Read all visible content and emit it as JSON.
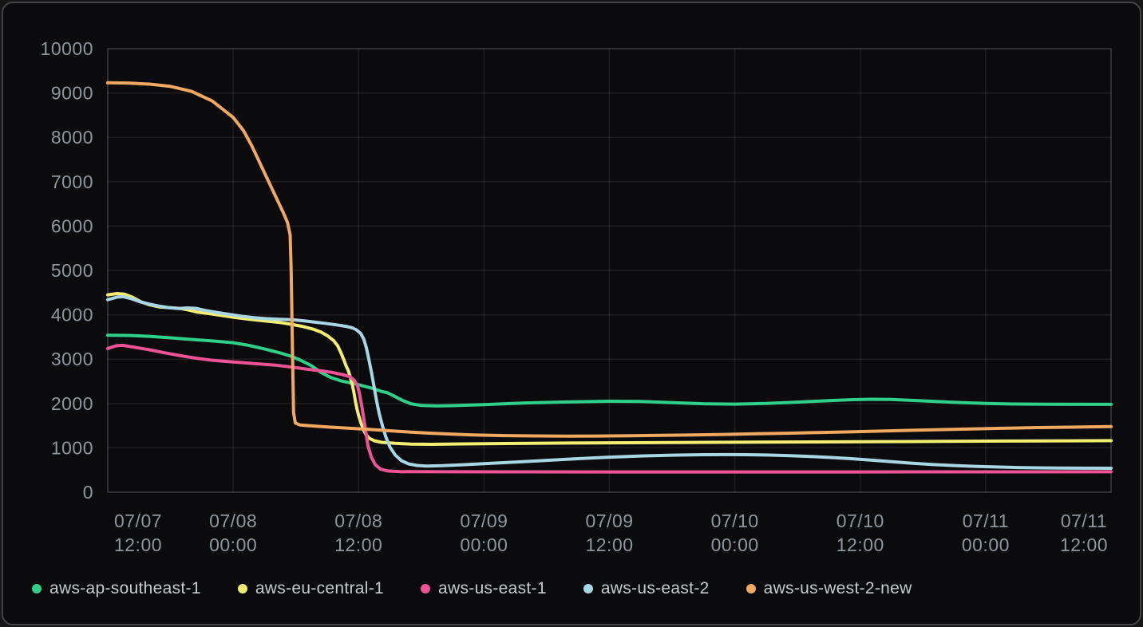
{
  "panel": {
    "background": "#0b0b0d",
    "border_color": "#434345"
  },
  "colors": {
    "grid": "rgba(255,255,255,0.08)",
    "plot_border": "rgba(255,255,255,0.14)",
    "axis_text": "#8f969e",
    "legend_text": "#c4c9ce"
  },
  "chart_data": {
    "type": "line",
    "title": "",
    "xlabel": "",
    "ylabel": "",
    "grid": true,
    "legend_position": "bottom",
    "y_axis": {
      "min": 0,
      "max": 10000,
      "tick_labels": [
        "0",
        "1000",
        "2000",
        "3000",
        "4000",
        "5000",
        "6000",
        "7000",
        "8000",
        "9000",
        "10000"
      ]
    },
    "x_axis": {
      "unit": "hours_from_start",
      "range": [
        0,
        96
      ],
      "ticks": [
        {
          "date": "07/07",
          "time": "12:00"
        },
        {
          "date": "07/08",
          "time": "00:00"
        },
        {
          "date": "07/08",
          "time": "12:00"
        },
        {
          "date": "07/09",
          "time": "00:00"
        },
        {
          "date": "07/09",
          "time": "12:00"
        },
        {
          "date": "07/10",
          "time": "00:00"
        },
        {
          "date": "07/10",
          "time": "12:00"
        },
        {
          "date": "07/11",
          "time": "00:00"
        },
        {
          "date": "07/11",
          "time": "12:00"
        }
      ]
    },
    "series": [
      {
        "name": "aws-ap-southeast-1",
        "color": "#2fd089",
        "points": [
          [
            0,
            3540
          ],
          [
            2,
            3535
          ],
          [
            4,
            3515
          ],
          [
            6,
            3480
          ],
          [
            8,
            3445
          ],
          [
            10,
            3410
          ],
          [
            12,
            3370
          ],
          [
            13.5,
            3310
          ],
          [
            15,
            3230
          ],
          [
            16.5,
            3140
          ],
          [
            17.6,
            3060
          ],
          [
            18.5,
            2970
          ],
          [
            19.5,
            2850
          ],
          [
            20.4,
            2700
          ],
          [
            21.3,
            2590
          ],
          [
            22.3,
            2510
          ],
          [
            23.7,
            2440
          ],
          [
            24.7,
            2380
          ],
          [
            25.5,
            2330
          ],
          [
            26.2,
            2270
          ],
          [
            26.7,
            2248
          ],
          [
            27.3,
            2180
          ],
          [
            28.2,
            2070
          ],
          [
            29,
            1995
          ],
          [
            30,
            1955
          ],
          [
            31.5,
            1945
          ],
          [
            33,
            1952
          ],
          [
            36,
            1975
          ],
          [
            40,
            2012
          ],
          [
            44,
            2035
          ],
          [
            48,
            2050
          ],
          [
            51,
            2045
          ],
          [
            54,
            2020
          ],
          [
            57,
            1995
          ],
          [
            60,
            1985
          ],
          [
            63,
            2000
          ],
          [
            66,
            2030
          ],
          [
            69,
            2065
          ],
          [
            71,
            2085
          ],
          [
            73,
            2095
          ],
          [
            75,
            2090
          ],
          [
            78,
            2060
          ],
          [
            81,
            2025
          ],
          [
            84,
            2000
          ],
          [
            87,
            1988
          ],
          [
            90,
            1982
          ],
          [
            96,
            1980
          ]
        ]
      },
      {
        "name": "aws-eu-central-1",
        "color": "#f2ee72",
        "points": [
          [
            0,
            4450
          ],
          [
            0.9,
            4478
          ],
          [
            1.6,
            4465
          ],
          [
            2.4,
            4390
          ],
          [
            3.2,
            4290
          ],
          [
            4,
            4225
          ],
          [
            5,
            4175
          ],
          [
            6,
            4160
          ],
          [
            7,
            4140
          ],
          [
            7.8,
            4105
          ],
          [
            8.6,
            4060
          ],
          [
            9.6,
            4030
          ],
          [
            11,
            3980
          ],
          [
            12,
            3945
          ],
          [
            13.5,
            3900
          ],
          [
            15,
            3862
          ],
          [
            16.5,
            3825
          ],
          [
            17.6,
            3785
          ],
          [
            18.6,
            3740
          ],
          [
            19.6,
            3680
          ],
          [
            20.4,
            3610
          ],
          [
            21,
            3530
          ],
          [
            21.6,
            3420
          ],
          [
            22,
            3300
          ],
          [
            22.3,
            3150
          ],
          [
            22.6,
            2980
          ],
          [
            22.8,
            2850
          ],
          [
            23,
            2750
          ],
          [
            23.2,
            2600
          ],
          [
            23.4,
            2420
          ],
          [
            23.55,
            2250
          ],
          [
            23.7,
            2050
          ],
          [
            23.85,
            1870
          ],
          [
            24,
            1730
          ],
          [
            24.2,
            1580
          ],
          [
            24.45,
            1420
          ],
          [
            24.7,
            1300
          ],
          [
            25,
            1220
          ],
          [
            25.5,
            1160
          ],
          [
            26.2,
            1125
          ],
          [
            27.5,
            1100
          ],
          [
            29,
            1085
          ],
          [
            31,
            1080
          ],
          [
            34,
            1088
          ],
          [
            38,
            1098
          ],
          [
            44,
            1108
          ],
          [
            50,
            1115
          ],
          [
            56,
            1122
          ],
          [
            62,
            1128
          ],
          [
            68,
            1133
          ],
          [
            74,
            1140
          ],
          [
            80,
            1146
          ],
          [
            86,
            1152
          ],
          [
            92,
            1158
          ],
          [
            96,
            1162
          ]
        ]
      },
      {
        "name": "aws-us-east-1",
        "color": "#ee5396",
        "points": [
          [
            0,
            3240
          ],
          [
            0.8,
            3300
          ],
          [
            1.4,
            3312
          ],
          [
            2.5,
            3270
          ],
          [
            4,
            3210
          ],
          [
            5.5,
            3140
          ],
          [
            7,
            3075
          ],
          [
            8.5,
            3020
          ],
          [
            10,
            2975
          ],
          [
            12,
            2935
          ],
          [
            14,
            2900
          ],
          [
            16,
            2865
          ],
          [
            17.6,
            2820
          ],
          [
            19,
            2775
          ],
          [
            20.4,
            2735
          ],
          [
            21.5,
            2700
          ],
          [
            22.5,
            2650
          ],
          [
            23.2,
            2600
          ],
          [
            23.6,
            2520
          ],
          [
            23.9,
            2400
          ],
          [
            24.1,
            2200
          ],
          [
            24.3,
            1950
          ],
          [
            24.5,
            1650
          ],
          [
            24.7,
            1350
          ],
          [
            24.9,
            1050
          ],
          [
            25.2,
            800
          ],
          [
            25.6,
            620
          ],
          [
            26.1,
            520
          ],
          [
            26.8,
            478
          ],
          [
            28,
            463
          ],
          [
            32,
            460
          ],
          [
            40,
            458
          ],
          [
            48,
            457
          ],
          [
            56,
            457
          ],
          [
            64,
            457
          ],
          [
            72,
            457
          ],
          [
            80,
            458
          ],
          [
            88,
            459
          ],
          [
            96,
            460
          ]
        ]
      },
      {
        "name": "aws-us-east-2",
        "color": "#a9d6e5",
        "points": [
          [
            0,
            4340
          ],
          [
            0.9,
            4400
          ],
          [
            1.5,
            4408
          ],
          [
            2.3,
            4360
          ],
          [
            3,
            4300
          ],
          [
            3.8,
            4250
          ],
          [
            4.8,
            4200
          ],
          [
            5.8,
            4162
          ],
          [
            6.8,
            4140
          ],
          [
            7.6,
            4155
          ],
          [
            8.4,
            4145
          ],
          [
            9.2,
            4105
          ],
          [
            10,
            4070
          ],
          [
            11,
            4030
          ],
          [
            12,
            3995
          ],
          [
            13,
            3960
          ],
          [
            14,
            3935
          ],
          [
            15.2,
            3912
          ],
          [
            16.4,
            3898
          ],
          [
            17.6,
            3888
          ],
          [
            18.8,
            3862
          ],
          [
            20,
            3830
          ],
          [
            21,
            3800
          ],
          [
            22,
            3768
          ],
          [
            22.8,
            3740
          ],
          [
            23.4,
            3705
          ],
          [
            23.8,
            3660
          ],
          [
            24.2,
            3580
          ],
          [
            24.5,
            3450
          ],
          [
            24.75,
            3250
          ],
          [
            25,
            2980
          ],
          [
            25.25,
            2680
          ],
          [
            25.5,
            2350
          ],
          [
            25.75,
            2020
          ],
          [
            26,
            1750
          ],
          [
            26.3,
            1480
          ],
          [
            26.6,
            1250
          ],
          [
            27,
            1020
          ],
          [
            27.5,
            840
          ],
          [
            28.1,
            710
          ],
          [
            28.8,
            636
          ],
          [
            29.6,
            602
          ],
          [
            30.5,
            590
          ],
          [
            32,
            598
          ],
          [
            34,
            618
          ],
          [
            36,
            642
          ],
          [
            39,
            680
          ],
          [
            42,
            718
          ],
          [
            45,
            755
          ],
          [
            48,
            790
          ],
          [
            51,
            816
          ],
          [
            54,
            834
          ],
          [
            57,
            845
          ],
          [
            59,
            848
          ],
          [
            61,
            845
          ],
          [
            63,
            838
          ],
          [
            65,
            825
          ],
          [
            67,
            808
          ],
          [
            69,
            785
          ],
          [
            71,
            757
          ],
          [
            73,
            724
          ],
          [
            75,
            688
          ],
          [
            77,
            652
          ],
          [
            79,
            622
          ],
          [
            81,
            600
          ],
          [
            83,
            582
          ],
          [
            85,
            568
          ],
          [
            87,
            556
          ],
          [
            89,
            548
          ],
          [
            91,
            543
          ],
          [
            93,
            541
          ],
          [
            96,
            540
          ]
        ]
      },
      {
        "name": "aws-us-west-2-new",
        "color": "#f1a861",
        "points": [
          [
            0,
            9230
          ],
          [
            2,
            9225
          ],
          [
            4,
            9200
          ],
          [
            6,
            9150
          ],
          [
            8,
            9040
          ],
          [
            10,
            8820
          ],
          [
            12,
            8450
          ],
          [
            13,
            8150
          ],
          [
            13.8,
            7800
          ],
          [
            14.6,
            7400
          ],
          [
            15.4,
            7000
          ],
          [
            16.2,
            6600
          ],
          [
            16.8,
            6300
          ],
          [
            17.2,
            6080
          ],
          [
            17.45,
            5800
          ],
          [
            17.55,
            5000
          ],
          [
            17.62,
            4000
          ],
          [
            17.7,
            2800
          ],
          [
            17.78,
            1800
          ],
          [
            17.95,
            1560
          ],
          [
            18.4,
            1515
          ],
          [
            19.5,
            1495
          ],
          [
            21,
            1470
          ],
          [
            23,
            1445
          ],
          [
            25,
            1415
          ],
          [
            27,
            1385
          ],
          [
            29,
            1355
          ],
          [
            31,
            1330
          ],
          [
            33,
            1308
          ],
          [
            35,
            1290
          ],
          [
            38,
            1275
          ],
          [
            41,
            1268
          ],
          [
            44,
            1265
          ],
          [
            47,
            1267
          ],
          [
            50,
            1273
          ],
          [
            53,
            1282
          ],
          [
            56,
            1292
          ],
          [
            59,
            1303
          ],
          [
            62,
            1316
          ],
          [
            65,
            1330
          ],
          [
            68,
            1345
          ],
          [
            71,
            1360
          ],
          [
            74,
            1378
          ],
          [
            77,
            1396
          ],
          [
            80,
            1412
          ],
          [
            83,
            1428
          ],
          [
            86,
            1443
          ],
          [
            89,
            1456
          ],
          [
            92,
            1466
          ],
          [
            96,
            1478
          ]
        ]
      }
    ]
  }
}
